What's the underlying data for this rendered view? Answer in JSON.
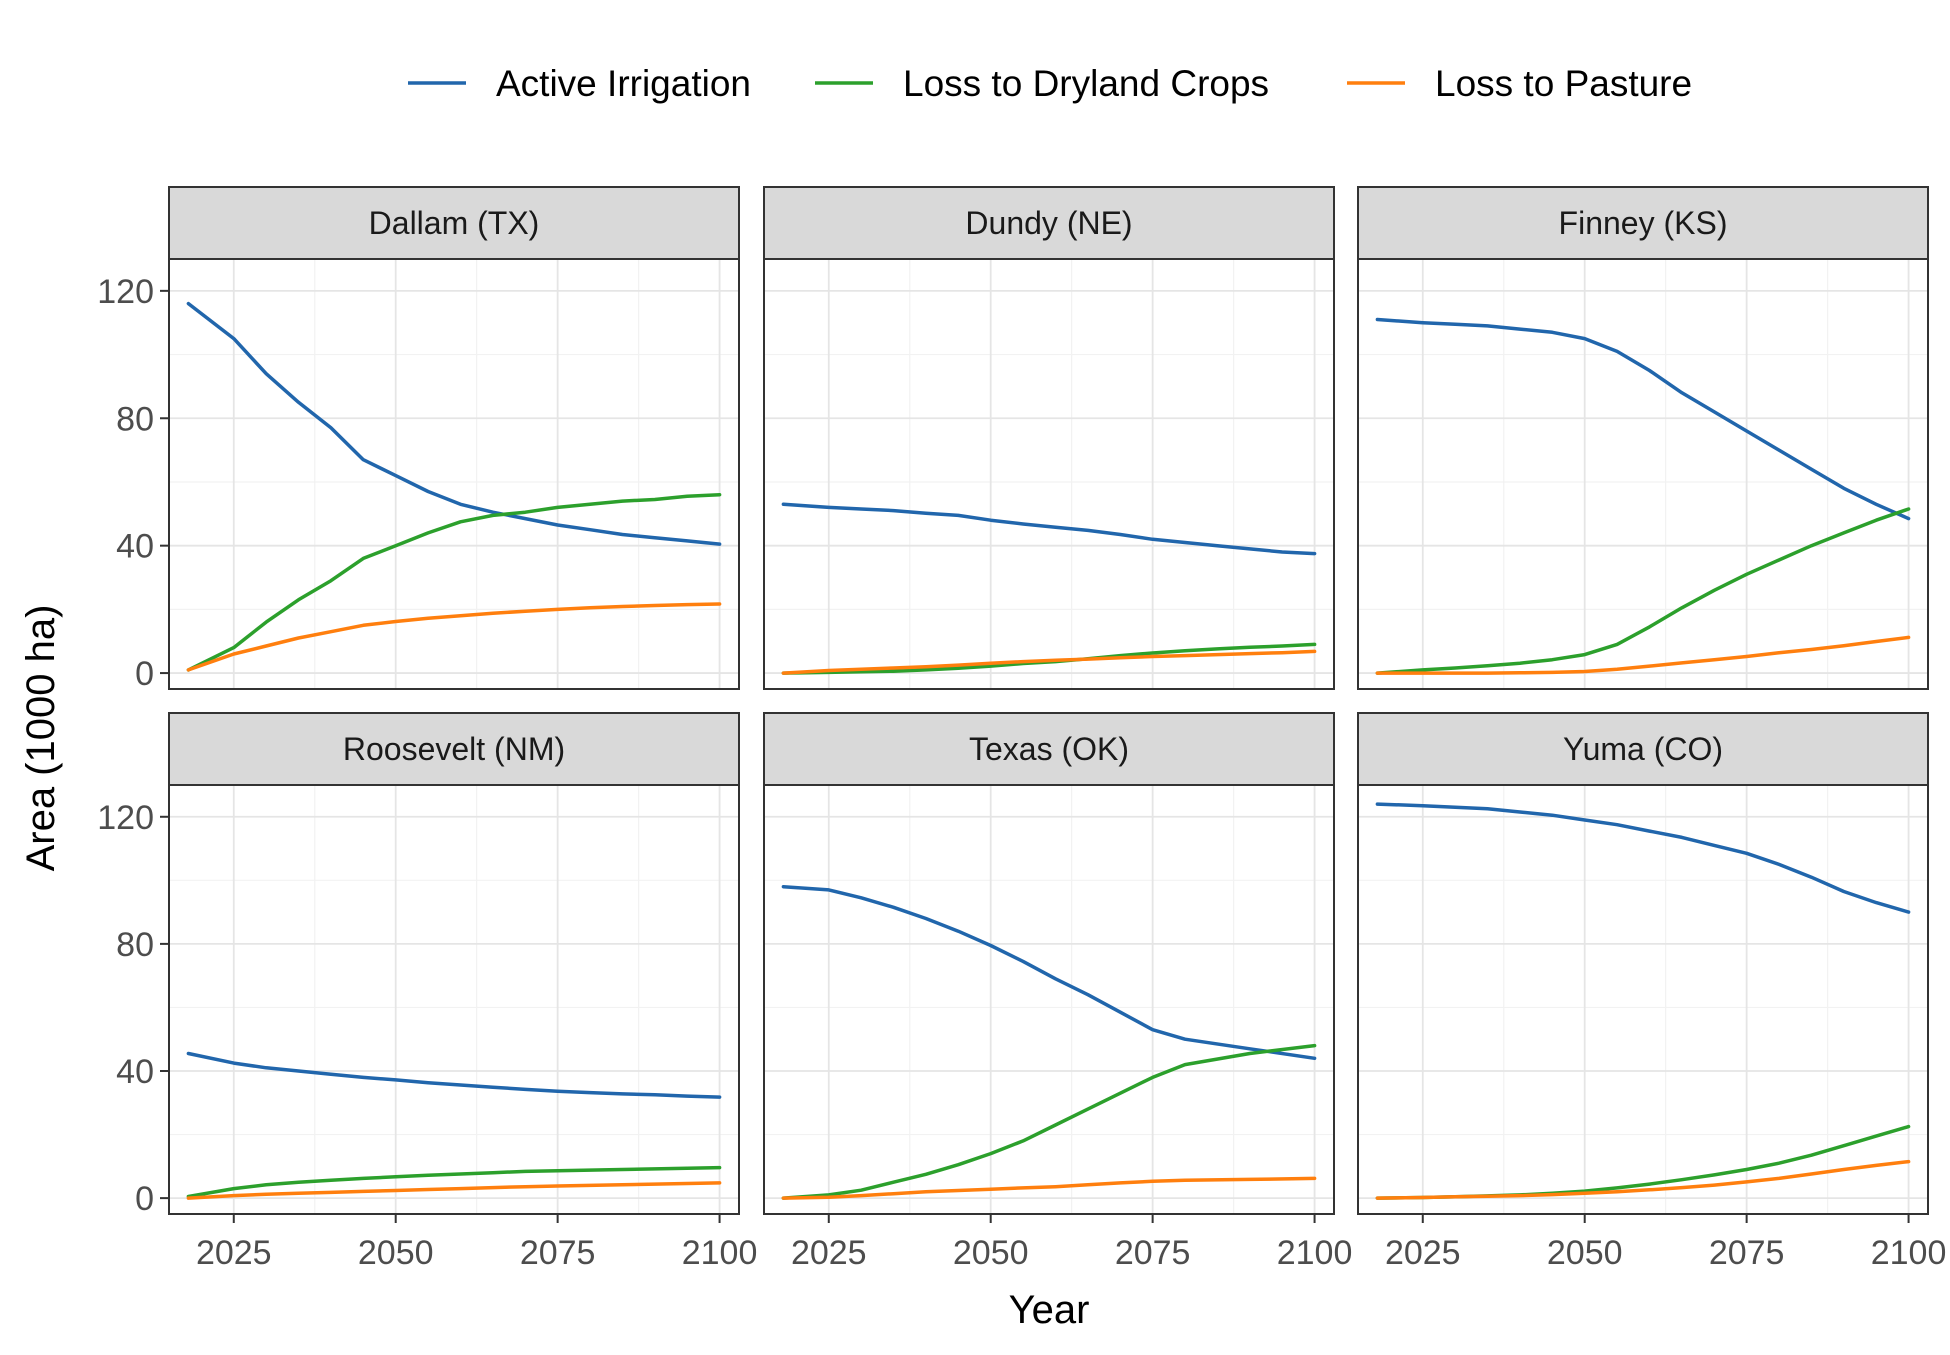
{
  "chart_data": {
    "type": "line",
    "xlabel": "Year",
    "ylabel": "Area (1000 ha)",
    "xlim": [
      2015,
      2103
    ],
    "ylim": [
      -5,
      130
    ],
    "x_ticks": [
      2025,
      2050,
      2075,
      2100
    ],
    "y_ticks": [
      0,
      40,
      80,
      120
    ],
    "grid": true,
    "legend": {
      "position": "top",
      "entries": [
        {
          "key": "irr",
          "label": "Active Irrigation",
          "color": "#2166ac"
        },
        {
          "key": "dry",
          "label": "Loss to Dryland Crops",
          "color": "#2ca02c"
        },
        {
          "key": "pas",
          "label": "Loss to Pasture",
          "color": "#ff7f0e"
        }
      ]
    },
    "x": [
      2018,
      2025,
      2030,
      2035,
      2040,
      2045,
      2050,
      2055,
      2060,
      2065,
      2070,
      2075,
      2080,
      2085,
      2090,
      2095,
      2100
    ],
    "panels": [
      {
        "title": "Dallam (TX)",
        "series": [
          {
            "key": "irr",
            "values": [
              116,
              105,
              94,
              85,
              77,
              67,
              62,
              57,
              53,
              50.5,
              48.5,
              46.5,
              45,
              43.5,
              42.5,
              41.5,
              40.5
            ]
          },
          {
            "key": "dry",
            "values": [
              1,
              8,
              16,
              23,
              29,
              36,
              40,
              44,
              47.5,
              49.5,
              50.5,
              52,
              53,
              54,
              54.5,
              55.5,
              56
            ]
          },
          {
            "key": "pas",
            "values": [
              1,
              6,
              8.5,
              11,
              13,
              15,
              16.2,
              17.2,
              18,
              18.8,
              19.4,
              20,
              20.5,
              20.9,
              21.2,
              21.5,
              21.7
            ]
          }
        ]
      },
      {
        "title": "Dundy (NE)",
        "series": [
          {
            "key": "irr",
            "values": [
              53,
              52,
              51.5,
              51,
              50.2,
              49.5,
              48,
              46.8,
              45.8,
              44.8,
              43.5,
              42,
              41,
              40,
              39,
              38,
              37.5
            ]
          },
          {
            "key": "dry",
            "values": [
              0,
              0.2,
              0.4,
              0.6,
              1,
              1.5,
              2.2,
              3,
              3.6,
              4.5,
              5.5,
              6.3,
              7,
              7.6,
              8.1,
              8.5,
              9
            ]
          },
          {
            "key": "pas",
            "values": [
              0,
              0.8,
              1.2,
              1.6,
              2,
              2.5,
              3.1,
              3.6,
              4,
              4.4,
              4.8,
              5.2,
              5.5,
              5.8,
              6.1,
              6.4,
              6.8
            ]
          }
        ]
      },
      {
        "title": "Finney (KS)",
        "series": [
          {
            "key": "irr",
            "values": [
              111,
              110,
              109.5,
              109,
              108,
              107,
              105,
              101,
              95,
              88,
              82,
              76,
              70,
              64,
              58,
              53,
              48.5
            ]
          },
          {
            "key": "dry",
            "values": [
              0,
              1,
              1.6,
              2.3,
              3.1,
              4.2,
              5.8,
              9,
              14.5,
              20.5,
              26,
              31,
              35.5,
              40,
              44,
              48,
              51.5
            ]
          },
          {
            "key": "pas",
            "values": [
              0,
              0,
              0,
              0,
              0.1,
              0.2,
              0.5,
              1.2,
              2.2,
              3.2,
              4.2,
              5.2,
              6.4,
              7.4,
              8.6,
              9.9,
              11.2
            ]
          }
        ]
      },
      {
        "title": "Roosevelt (NM)",
        "series": [
          {
            "key": "irr",
            "values": [
              45.5,
              42.5,
              41,
              40,
              39,
              38,
              37.2,
              36.3,
              35.6,
              34.9,
              34.2,
              33.6,
              33.2,
              32.8,
              32.5,
              32.1,
              31.8
            ]
          },
          {
            "key": "dry",
            "values": [
              0.5,
              3,
              4.2,
              5,
              5.6,
              6.2,
              6.7,
              7.2,
              7.6,
              8,
              8.4,
              8.6,
              8.8,
              9,
              9.2,
              9.4,
              9.6
            ]
          },
          {
            "key": "pas",
            "values": [
              0,
              0.8,
              1.2,
              1.5,
              1.8,
              2.1,
              2.4,
              2.7,
              3,
              3.3,
              3.6,
              3.8,
              4,
              4.2,
              4.4,
              4.6,
              4.8
            ]
          }
        ]
      },
      {
        "title": "Texas (OK)",
        "series": [
          {
            "key": "irr",
            "values": [
              98,
              97,
              94.5,
              91.5,
              88,
              84,
              79.5,
              74.5,
              69,
              64,
              58.5,
              53,
              50,
              47,
              44
            ]
          },
          {
            "key": "dry",
            "values": [
              0,
              1,
              2.5,
              5,
              7.5,
              10.5,
              14,
              18,
              23,
              28,
              33,
              38,
              42,
              45.5,
              48
            ]
          },
          {
            "key": "pas",
            "values": [
              0,
              0.3,
              0.8,
              1.4,
              2,
              2.4,
              2.8,
              3.2,
              3.6,
              4.2,
              4.8,
              5.3,
              5.6,
              5.9,
              6.2
            ]
          }
        ],
        "x_override": [
          2018,
          2025,
          2030,
          2035,
          2040,
          2045,
          2050,
          2055,
          2060,
          2065,
          2070,
          2075,
          2080,
          2090,
          2100
        ]
      },
      {
        "title": "Yuma (CO)",
        "series": [
          {
            "key": "irr",
            "values": [
              124,
              123.5,
              123,
              122.5,
              121.5,
              120.5,
              119,
              117.5,
              115.5,
              113.5,
              111,
              108.5,
              105,
              101,
              96.5,
              93,
              90
            ]
          },
          {
            "key": "dry",
            "values": [
              0,
              0.2,
              0.4,
              0.7,
              1,
              1.5,
              2.2,
              3.2,
              4.4,
              5.8,
              7.3,
              9,
              11,
              13.5,
              16.5,
              19.5,
              22.5
            ]
          },
          {
            "key": "pas",
            "values": [
              0,
              0.2,
              0.4,
              0.6,
              0.8,
              1.1,
              1.5,
              2,
              2.6,
              3.3,
              4.1,
              5.1,
              6.2,
              7.6,
              9,
              10.3,
              11.5
            ]
          }
        ]
      }
    ]
  }
}
